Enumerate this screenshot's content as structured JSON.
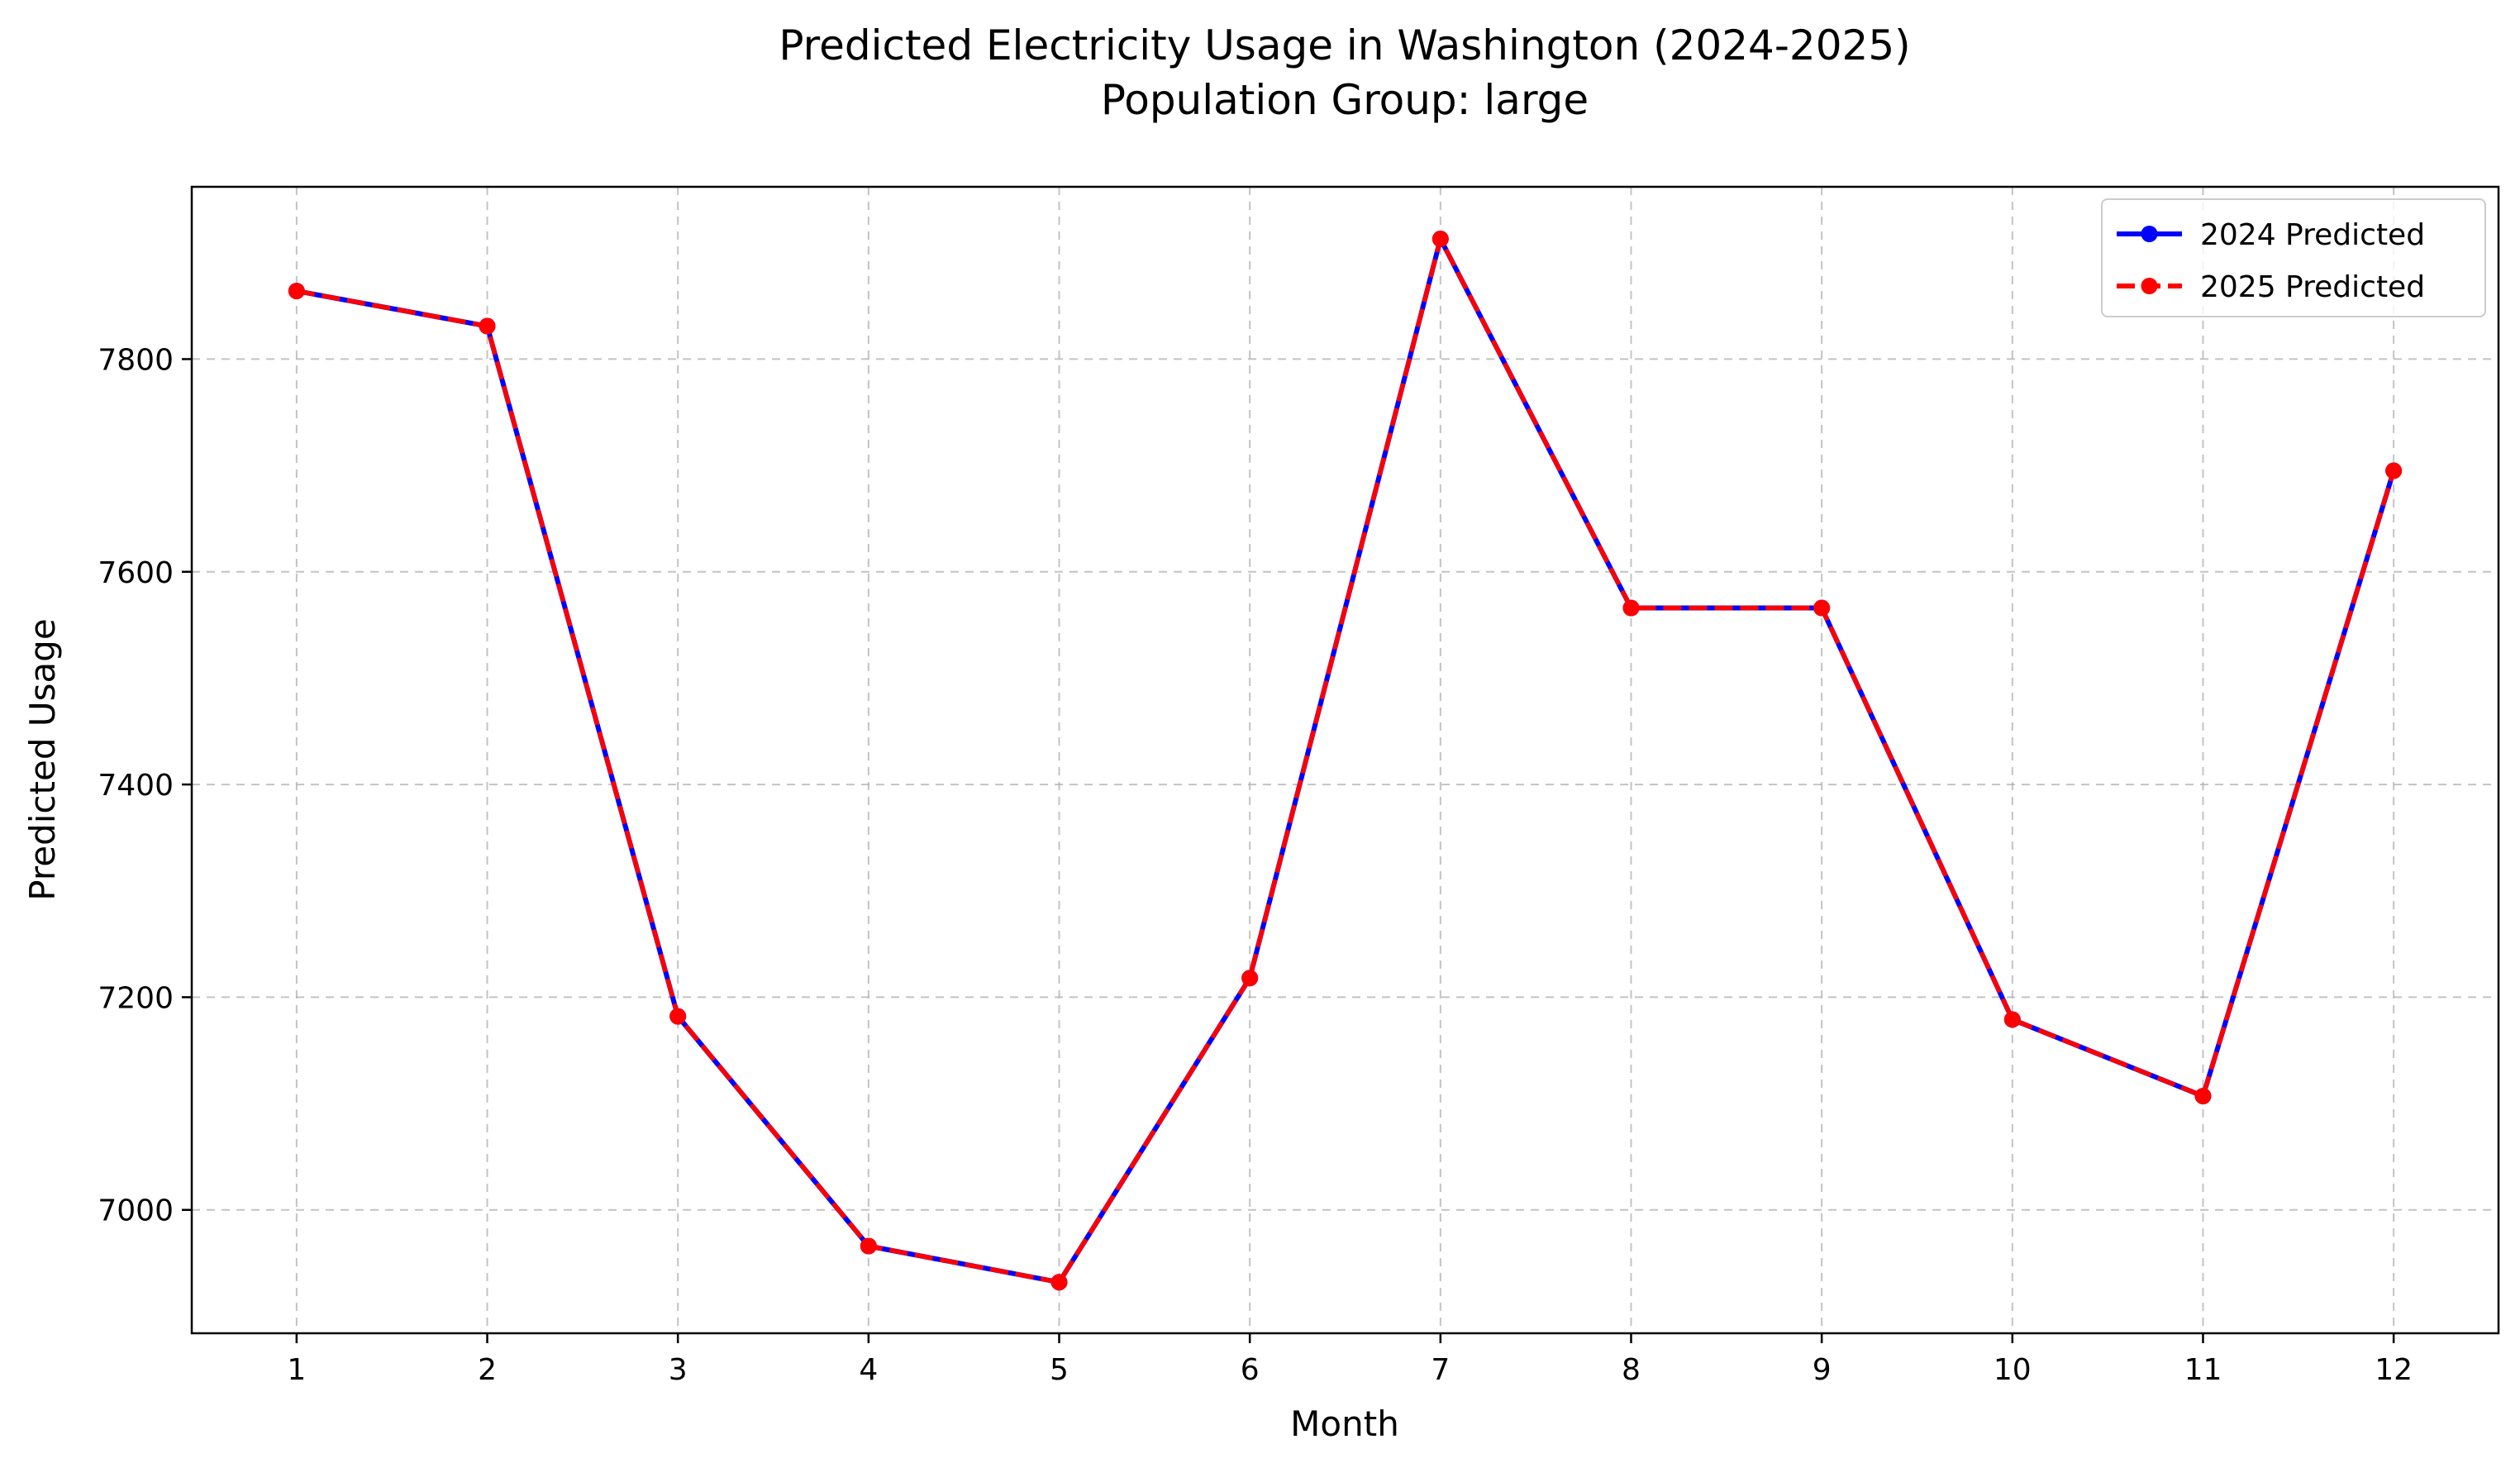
{
  "chart_data": {
    "type": "line",
    "title": "Predicted Electricity Usage in Washington (2024-2025)",
    "subtitle": "Population Group: large",
    "xlabel": "Month",
    "ylabel": "Predicted Usage",
    "x": [
      1,
      2,
      3,
      4,
      5,
      6,
      7,
      8,
      9,
      10,
      11,
      12
    ],
    "x_tick_labels": [
      "1",
      "2",
      "3",
      "4",
      "5",
      "6",
      "7",
      "8",
      "9",
      "10",
      "11",
      "12"
    ],
    "y_ticks": [
      7000,
      7200,
      7400,
      7600,
      7800
    ],
    "y_tick_labels": [
      "7000",
      "7200",
      "7400",
      "7600",
      "7800"
    ],
    "xlim": [
      0.45,
      12.55
    ],
    "ylim": [
      6884,
      7962
    ],
    "grid": true,
    "legend_position": "top-right",
    "series": [
      {
        "name": "2024 Predicted",
        "color": "#0000ff",
        "line_style": "solid",
        "marker": "circle",
        "values": [
          7864,
          7831,
          7182,
          6966,
          6932,
          7218,
          7913,
          7566,
          7566,
          7179,
          7107,
          7695
        ]
      },
      {
        "name": "2025 Predicted",
        "color": "#ff0000",
        "line_style": "dashed",
        "marker": "circle",
        "values": [
          7864,
          7831,
          7182,
          6966,
          6932,
          7218,
          7913,
          7566,
          7566,
          7179,
          7107,
          7695
        ]
      }
    ]
  }
}
